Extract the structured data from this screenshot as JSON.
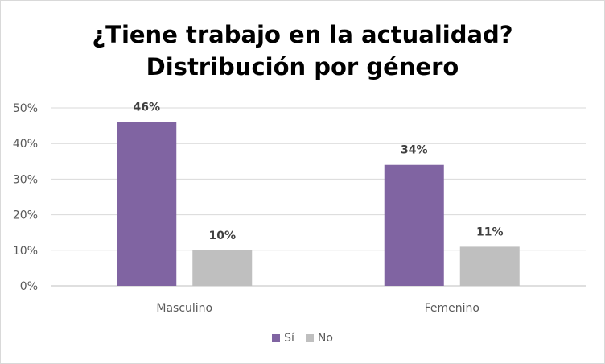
{
  "chart_data": {
    "type": "bar",
    "title_lines": [
      "¿Tiene trabajo en la actualidad?",
      "Distribución por género"
    ],
    "categories": [
      "Masculino",
      "Femenino"
    ],
    "series": [
      {
        "name": "Sí",
        "values": [
          46,
          34
        ],
        "labels": [
          "46%",
          "34%"
        ],
        "color": "#8064A2"
      },
      {
        "name": "No",
        "values": [
          10,
          11
        ],
        "labels": [
          "10%",
          "11%"
        ],
        "color": "#BFBFBF"
      }
    ],
    "ylim": [
      0,
      50
    ],
    "yticks": [
      0,
      10,
      20,
      30,
      40,
      50
    ],
    "ytick_labels": [
      "0%",
      "10%",
      "20%",
      "30%",
      "40%",
      "50%"
    ],
    "grid": true,
    "legend_position": "bottom"
  }
}
